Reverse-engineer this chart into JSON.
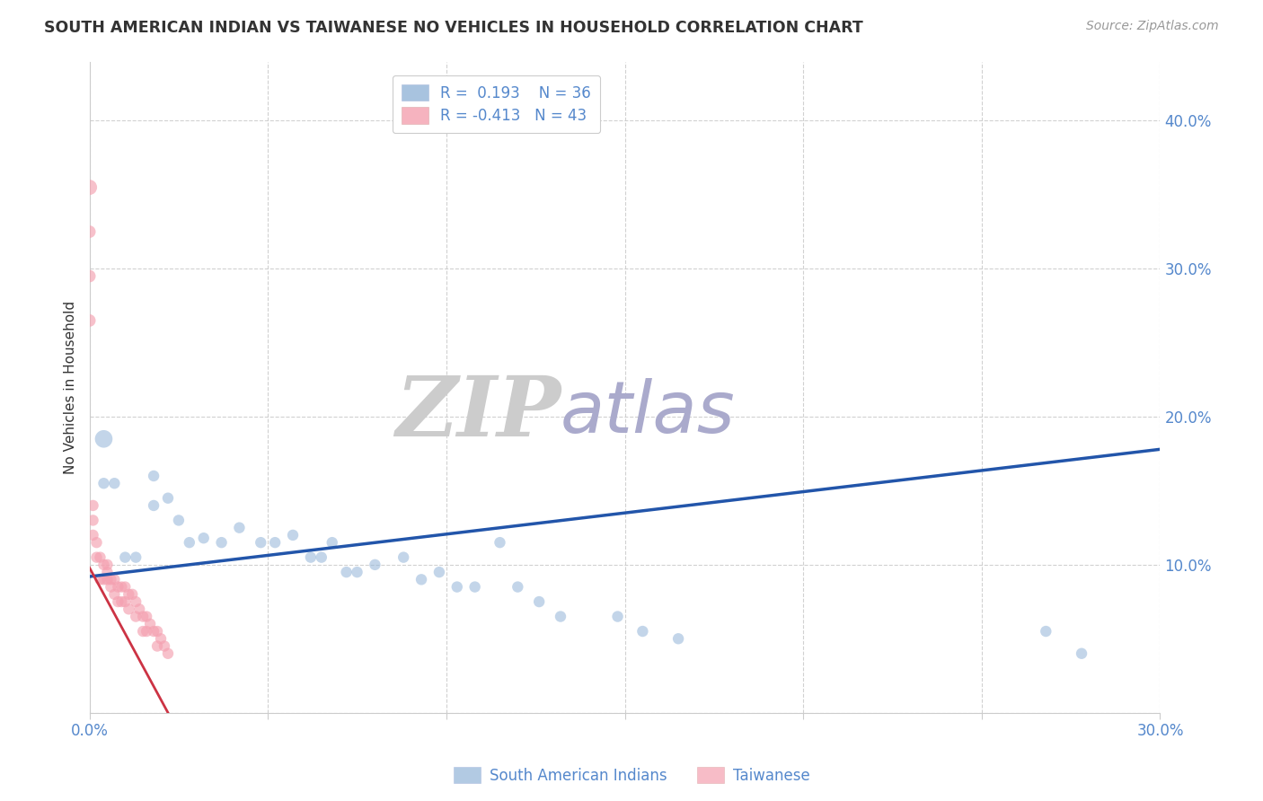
{
  "title": "SOUTH AMERICAN INDIAN VS TAIWANESE NO VEHICLES IN HOUSEHOLD CORRELATION CHART",
  "source": "Source: ZipAtlas.com",
  "ylabel": "No Vehicles in Household",
  "xlim": [
    0.0,
    0.3
  ],
  "ylim": [
    0.0,
    0.44
  ],
  "xticks": [
    0.0,
    0.05,
    0.1,
    0.15,
    0.2,
    0.25,
    0.3
  ],
  "xtick_labels": [
    "0.0%",
    "",
    "",
    "",
    "",
    "",
    "30.0%"
  ],
  "yticks_right": [
    0.0,
    0.1,
    0.2,
    0.3,
    0.4
  ],
  "ytick_labels_right": [
    "",
    "10.0%",
    "20.0%",
    "30.0%",
    "40.0%"
  ],
  "legend_blue_r": "0.193",
  "legend_blue_n": "36",
  "legend_pink_r": "-0.413",
  "legend_pink_n": "43",
  "blue_scatter_x": [
    0.004,
    0.004,
    0.007,
    0.01,
    0.013,
    0.018,
    0.018,
    0.022,
    0.025,
    0.028,
    0.032,
    0.037,
    0.042,
    0.048,
    0.052,
    0.057,
    0.062,
    0.065,
    0.068,
    0.072,
    0.075,
    0.08,
    0.088,
    0.093,
    0.098,
    0.103,
    0.108,
    0.115,
    0.12,
    0.126,
    0.132,
    0.148,
    0.155,
    0.165,
    0.268,
    0.278
  ],
  "blue_scatter_y": [
    0.185,
    0.155,
    0.155,
    0.105,
    0.105,
    0.14,
    0.16,
    0.145,
    0.13,
    0.115,
    0.118,
    0.115,
    0.125,
    0.115,
    0.115,
    0.12,
    0.105,
    0.105,
    0.115,
    0.095,
    0.095,
    0.1,
    0.105,
    0.09,
    0.095,
    0.085,
    0.085,
    0.115,
    0.085,
    0.075,
    0.065,
    0.065,
    0.055,
    0.05,
    0.055,
    0.04
  ],
  "blue_scatter_size": [
    200,
    80,
    80,
    80,
    80,
    80,
    80,
    80,
    80,
    80,
    80,
    80,
    80,
    80,
    80,
    80,
    80,
    80,
    80,
    80,
    80,
    80,
    80,
    80,
    80,
    80,
    80,
    80,
    80,
    80,
    80,
    80,
    80,
    80,
    80,
    80
  ],
  "pink_scatter_x": [
    0.0,
    0.0,
    0.0,
    0.0,
    0.001,
    0.001,
    0.001,
    0.002,
    0.002,
    0.003,
    0.003,
    0.004,
    0.004,
    0.005,
    0.005,
    0.005,
    0.006,
    0.006,
    0.007,
    0.007,
    0.008,
    0.008,
    0.009,
    0.009,
    0.01,
    0.01,
    0.011,
    0.011,
    0.012,
    0.013,
    0.013,
    0.014,
    0.015,
    0.015,
    0.016,
    0.016,
    0.017,
    0.018,
    0.019,
    0.019,
    0.02,
    0.021,
    0.022
  ],
  "pink_scatter_y": [
    0.355,
    0.325,
    0.295,
    0.265,
    0.14,
    0.13,
    0.12,
    0.115,
    0.105,
    0.105,
    0.09,
    0.1,
    0.09,
    0.1,
    0.09,
    0.095,
    0.09,
    0.085,
    0.09,
    0.08,
    0.085,
    0.075,
    0.085,
    0.075,
    0.085,
    0.075,
    0.08,
    0.07,
    0.08,
    0.075,
    0.065,
    0.07,
    0.065,
    0.055,
    0.065,
    0.055,
    0.06,
    0.055,
    0.055,
    0.045,
    0.05,
    0.045,
    0.04
  ],
  "pink_scatter_size": [
    150,
    100,
    100,
    100,
    80,
    80,
    80,
    80,
    80,
    80,
    80,
    80,
    80,
    80,
    80,
    80,
    80,
    80,
    80,
    80,
    80,
    80,
    80,
    80,
    80,
    80,
    80,
    80,
    80,
    80,
    80,
    80,
    80,
    80,
    80,
    80,
    80,
    80,
    80,
    80,
    80,
    80,
    80
  ],
  "blue_line_x": [
    0.0,
    0.3
  ],
  "blue_line_y": [
    0.092,
    0.178
  ],
  "pink_line_x": [
    0.0,
    0.022
  ],
  "pink_line_y": [
    0.098,
    0.0
  ],
  "blue_color": "#92B4D8",
  "pink_color": "#F4A0B0",
  "blue_fill_color": "#92B4D8",
  "pink_fill_color": "#F4A0B0",
  "blue_line_color": "#2255AA",
  "pink_line_color": "#CC3344",
  "grid_color": "#CCCCCC",
  "bg_color": "#FFFFFF",
  "watermark_zip": "ZIP",
  "watermark_atlas": "atlas",
  "watermark_color_zip": "#CCCCCC",
  "watermark_color_atlas": "#AAAACC",
  "title_color": "#333333",
  "source_color": "#999999",
  "axis_color": "#5588CC",
  "ylabel_color": "#333333"
}
